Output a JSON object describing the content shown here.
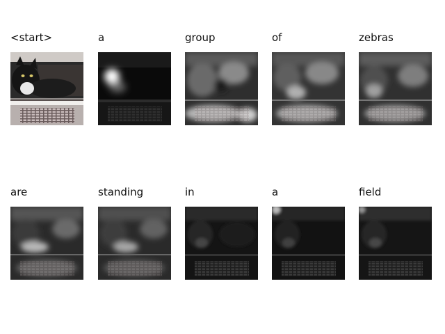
{
  "caption_words": [
    "<start>",
    "a",
    "group",
    "of",
    "zebras",
    "are",
    "standing",
    "in",
    "a",
    "field"
  ],
  "colors": {
    "background": "#ffffff",
    "text": "#111111"
  }
}
